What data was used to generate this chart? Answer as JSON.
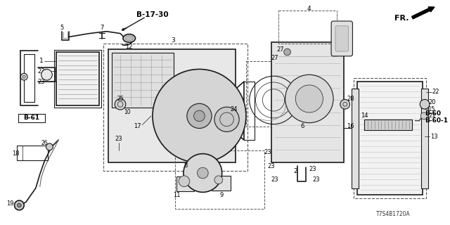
{
  "bg": "#ffffff",
  "lc": "#1a1a1a",
  "diagram_id": "T7S4B1720A",
  "fr_label": "FR.",
  "b1730": "B-17-30",
  "b61": "B-61",
  "b60": "B-60",
  "b601": "B-60-1",
  "figsize": [
    6.4,
    3.2
  ],
  "dpi": 100
}
